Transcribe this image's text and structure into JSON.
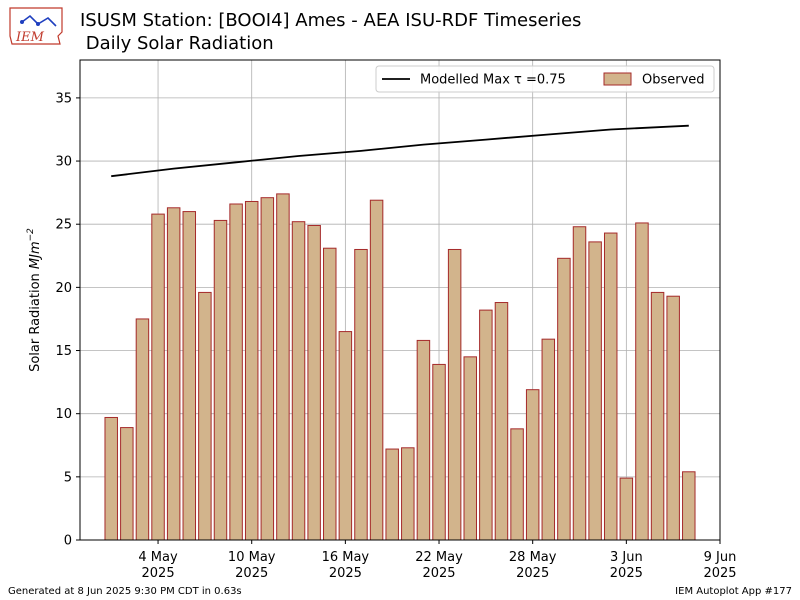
{
  "header": {
    "title_line1": "ISUSM Station: [BOOI4] Ames - AEA ISU-RDF Timeseries",
    "title_line2": " Daily Solar Radiation",
    "logo_text": "IEM"
  },
  "footer": {
    "left": "Generated at 8 Jun 2025 9:30 PM CDT in 0.63s",
    "right": "IEM Autoplot App #177"
  },
  "colors": {
    "bar_fill": "#d2b48c",
    "bar_edge": "#a52a2a",
    "model_line": "#000000",
    "grid": "#b0b0b0"
  },
  "chart_data": {
    "type": "bar",
    "ylabel": "Solar Radiation MJm^-2",
    "ylim": [
      0,
      38
    ],
    "yticks": [
      0,
      5,
      10,
      15,
      20,
      25,
      30,
      35
    ],
    "xlim": [
      "2025-04-29",
      "2025-06-09"
    ],
    "xticks": [
      {
        "date": "2025-05-04",
        "label1": "4 May",
        "label2": "2025"
      },
      {
        "date": "2025-05-10",
        "label1": "10 May",
        "label2": "2025"
      },
      {
        "date": "2025-05-16",
        "label1": "16 May",
        "label2": "2025"
      },
      {
        "date": "2025-05-22",
        "label1": "22 May",
        "label2": "2025"
      },
      {
        "date": "2025-05-28",
        "label1": "28 May",
        "label2": "2025"
      },
      {
        "date": "2025-06-03",
        "label1": "3 Jun",
        "label2": "2025"
      },
      {
        "date": "2025-06-09",
        "label1": "9 Jun",
        "label2": "2025"
      }
    ],
    "grid": true,
    "legend_position": "top-right",
    "series": [
      {
        "name": "Observed",
        "type": "bar",
        "x": [
          "2025-05-01",
          "2025-05-02",
          "2025-05-03",
          "2025-05-04",
          "2025-05-05",
          "2025-05-06",
          "2025-05-07",
          "2025-05-08",
          "2025-05-09",
          "2025-05-10",
          "2025-05-11",
          "2025-05-12",
          "2025-05-13",
          "2025-05-14",
          "2025-05-15",
          "2025-05-16",
          "2025-05-17",
          "2025-05-18",
          "2025-05-19",
          "2025-05-20",
          "2025-05-21",
          "2025-05-22",
          "2025-05-23",
          "2025-05-24",
          "2025-05-25",
          "2025-05-26",
          "2025-05-27",
          "2025-05-28",
          "2025-05-29",
          "2025-05-30",
          "2025-05-31",
          "2025-06-01",
          "2025-06-02",
          "2025-06-03",
          "2025-06-04",
          "2025-06-05",
          "2025-06-06",
          "2025-06-07"
        ],
        "values": [
          9.7,
          8.9,
          17.5,
          25.8,
          26.3,
          26.0,
          19.6,
          25.3,
          26.6,
          26.8,
          27.1,
          27.4,
          25.2,
          24.9,
          23.1,
          16.5,
          23.0,
          26.9,
          7.2,
          7.3,
          15.8,
          13.9,
          23.0,
          14.5,
          18.2,
          18.8,
          8.8,
          11.9,
          15.9,
          22.3,
          24.8,
          23.6,
          24.3,
          4.9,
          25.1,
          19.6,
          19.3,
          5.4
        ]
      },
      {
        "name": "Modelled Max τ =0.75",
        "type": "line",
        "x": [
          "2025-05-01",
          "2025-05-05",
          "2025-05-09",
          "2025-05-13",
          "2025-05-17",
          "2025-05-21",
          "2025-05-25",
          "2025-05-29",
          "2025-06-02",
          "2025-06-07"
        ],
        "values": [
          28.8,
          29.4,
          29.9,
          30.4,
          30.8,
          31.3,
          31.7,
          32.1,
          32.5,
          32.8
        ]
      }
    ]
  }
}
